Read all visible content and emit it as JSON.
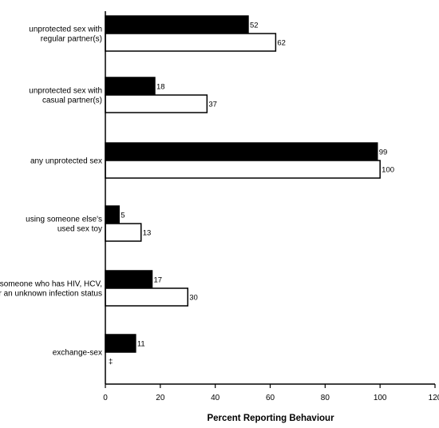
{
  "chart_data": {
    "type": "bar",
    "orientation": "horizontal",
    "xlabel": "Percent Reporting Behaviour",
    "xlim": [
      0,
      120
    ],
    "xticks": [
      "0",
      "20",
      "40",
      "60",
      "80",
      "100",
      "120"
    ],
    "grid": false,
    "legend": "none",
    "colors": [
      "#000000",
      "#ffffff"
    ],
    "categories": [
      {
        "lines": [
          "unprotected sex with",
          "regular partner(s)"
        ]
      },
      {
        "lines": [
          "unprotected sex with",
          "casual partner(s)"
        ]
      },
      {
        "lines": [
          "any unprotected sex"
        ]
      },
      {
        "lines": [
          "using someone else's",
          "used sex toy"
        ]
      },
      {
        "lines": [
          "sex with someone who has HIV, HCV,",
          "an STI, or an unknown infection status"
        ]
      },
      {
        "lines": [
          "exchange-sex"
        ]
      }
    ],
    "series": [
      {
        "color": "#000000",
        "values": [
          52,
          18,
          99,
          5,
          17,
          11
        ],
        "labels": [
          "52",
          "18",
          "99",
          "5",
          "17",
          "11"
        ]
      },
      {
        "color": "#ffffff",
        "values": [
          62,
          37,
          100,
          13,
          30,
          null
        ],
        "labels": [
          "62",
          "37",
          "100",
          "13",
          "30",
          "‡"
        ]
      }
    ]
  }
}
